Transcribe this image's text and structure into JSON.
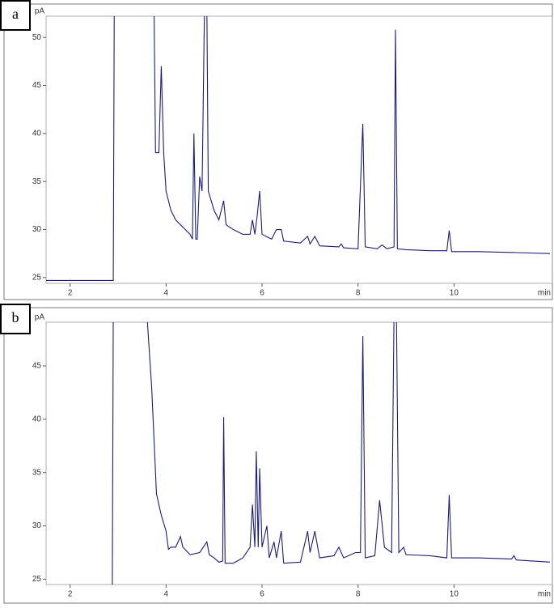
{
  "chart_data": [
    {
      "type": "line",
      "panel_label": "a",
      "y_label": "pA",
      "x_label": "min",
      "xlim": [
        1.5,
        12.05
      ],
      "ylim": [
        24.4,
        52.2
      ],
      "xticks": [
        2,
        4,
        6,
        8,
        10
      ],
      "yticks": [
        25,
        30,
        35,
        40,
        45,
        50
      ],
      "color": "#1c1c78",
      "x": [
        1.5,
        2.9,
        2.92,
        3.75,
        3.78,
        3.85,
        3.9,
        3.95,
        4.0,
        4.1,
        4.2,
        4.3,
        4.4,
        4.5,
        4.55,
        4.58,
        4.62,
        4.65,
        4.7,
        4.75,
        4.8,
        4.85,
        4.88,
        5.0,
        5.1,
        5.2,
        5.25,
        5.4,
        5.6,
        5.75,
        5.8,
        5.85,
        5.9,
        5.95,
        6.0,
        6.2,
        6.3,
        6.4,
        6.45,
        6.8,
        6.95,
        7.0,
        7.1,
        7.2,
        7.6,
        7.65,
        7.7,
        8.0,
        8.1,
        8.15,
        8.4,
        8.5,
        8.6,
        8.75,
        8.78,
        8.82,
        9.0,
        9.5,
        9.85,
        9.9,
        9.95,
        10.5,
        11.3,
        12.0
      ],
      "values": [
        24.7,
        24.7,
        53,
        53,
        38,
        38,
        47,
        38,
        34,
        32,
        31,
        30.5,
        30,
        29.5,
        29,
        40,
        29,
        29,
        35.5,
        34,
        53,
        53,
        34,
        32,
        31,
        33,
        30.5,
        30,
        29.5,
        29.5,
        31,
        29.5,
        31.5,
        34,
        29.5,
        29,
        30,
        30,
        28.8,
        28.6,
        29.3,
        28.5,
        29.3,
        28.3,
        28.2,
        28.5,
        28.1,
        28,
        41,
        28.2,
        28,
        28.4,
        28,
        28.2,
        50.8,
        28,
        27.9,
        27.8,
        27.8,
        29.9,
        27.7,
        27.7,
        27.6,
        27.5
      ]
    },
    {
      "type": "line",
      "panel_label": "b",
      "y_label": "pA",
      "x_label": "min",
      "xlim": [
        1.5,
        12.05
      ],
      "ylim": [
        24.5,
        49.1
      ],
      "xticks": [
        2,
        4,
        6,
        8,
        10
      ],
      "yticks": [
        25,
        30,
        35,
        40,
        45
      ],
      "color": "#1c1c78",
      "x": [
        1.5,
        2.88,
        2.9,
        3.6,
        3.62,
        3.7,
        3.75,
        3.8,
        3.9,
        4.0,
        4.05,
        4.1,
        4.2,
        4.3,
        4.35,
        4.5,
        4.7,
        4.85,
        4.9,
        5.0,
        5.1,
        5.18,
        5.2,
        5.23,
        5.4,
        5.6,
        5.75,
        5.8,
        5.85,
        5.88,
        5.92,
        5.95,
        6.0,
        6.1,
        6.15,
        6.25,
        6.3,
        6.4,
        6.45,
        6.8,
        6.95,
        7.0,
        7.1,
        7.2,
        7.5,
        7.6,
        7.7,
        7.95,
        8.05,
        8.1,
        8.15,
        8.35,
        8.45,
        8.55,
        8.7,
        8.75,
        8.8,
        8.85,
        8.95,
        9.0,
        9.5,
        9.85,
        9.9,
        9.95,
        10.5,
        11.2,
        11.25,
        11.3,
        12.0
      ],
      "values": [
        24,
        24,
        50,
        50,
        48.5,
        43,
        38,
        33,
        31,
        29.5,
        27.8,
        28,
        28,
        29,
        28,
        27.3,
        27.5,
        28.5,
        27.3,
        27,
        26.6,
        26.7,
        40.2,
        26.5,
        26.5,
        27,
        28,
        32,
        28,
        37,
        28,
        35.4,
        28,
        30,
        27,
        28.5,
        27,
        29.5,
        26.5,
        26.6,
        29.5,
        27.5,
        29.5,
        27,
        27.2,
        28,
        27,
        27.5,
        27.5,
        47.8,
        27,
        27.2,
        32.4,
        28,
        27.5,
        50,
        50,
        27.5,
        28,
        27.3,
        27.2,
        27,
        32.9,
        27,
        27,
        26.9,
        27.2,
        26.8,
        26.6
      ]
    }
  ]
}
